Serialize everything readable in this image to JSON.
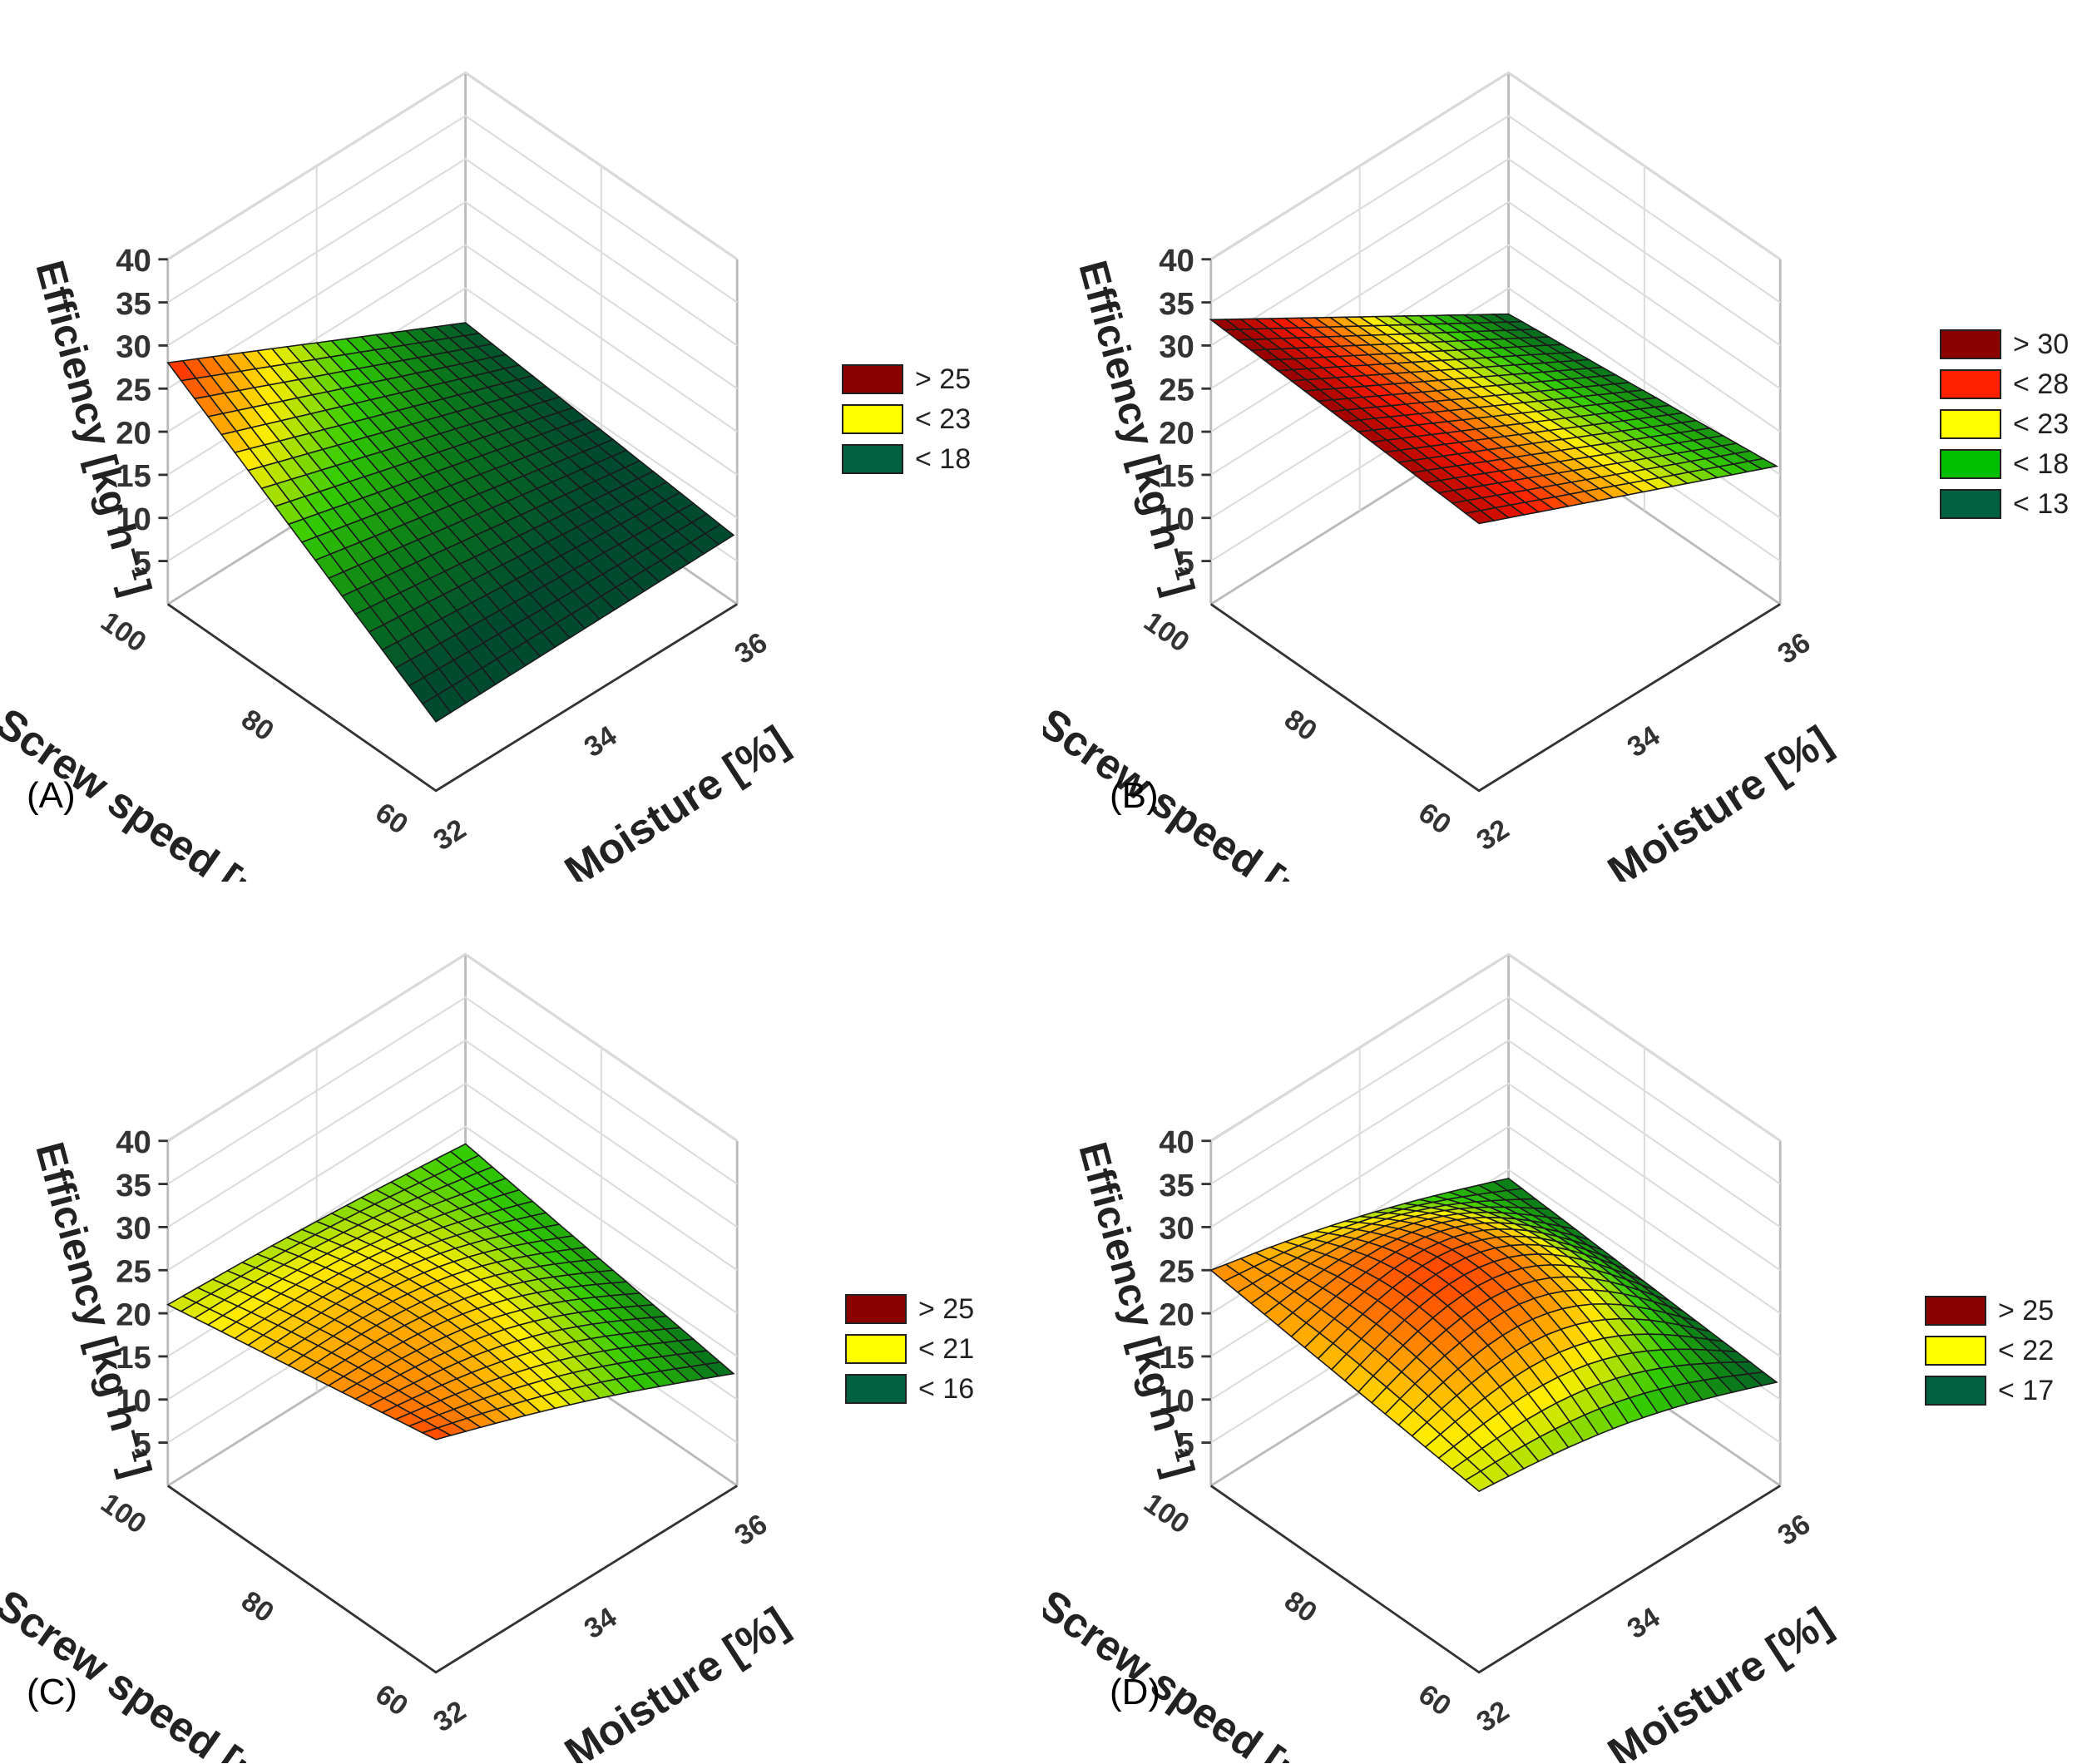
{
  "chart_data": [
    {
      "type": "surface3d",
      "panel_label": "(A)",
      "zlabel": "Efficiency [kg h⁻¹]",
      "xlabel": "Moisture [%]",
      "ylabel": "Screw speed [rpm]",
      "zlim": [
        0,
        40
      ],
      "z_ticks": [
        "5",
        "10",
        "15",
        "20",
        "25",
        "30",
        "35",
        "40"
      ],
      "x_ticks": [
        "32",
        "34",
        "36"
      ],
      "y_ticks": [
        "60",
        "80",
        "100"
      ],
      "corners": {
        "m32_s60": 8,
        "m36_s60": 8,
        "m32_s100": 28,
        "m36_s100": 11
      },
      "legend": [
        {
          "label": "> 25",
          "color": "#8b0000"
        },
        {
          "label": "< 23",
          "color": "#ffff00"
        },
        {
          "label": "< 18",
          "color": "#006040"
        }
      ]
    },
    {
      "type": "surface3d",
      "panel_label": "(B)",
      "zlabel": "Efficiency [kg h⁻¹]",
      "xlabel": "Moisture [%]",
      "ylabel": "Screw speed [rpm]",
      "zlim": [
        0,
        40
      ],
      "z_ticks": [
        "5",
        "10",
        "15",
        "20",
        "25",
        "30",
        "35",
        "40"
      ],
      "x_ticks": [
        "32",
        "34",
        "36"
      ],
      "y_ticks": [
        "60",
        "80",
        "100"
      ],
      "corners": {
        "m32_s60": 31,
        "m36_s60": 16,
        "m32_s100": 33,
        "m36_s100": 12
      },
      "legend": [
        {
          "label": "> 30",
          "color": "#8b0000"
        },
        {
          "label": "< 28",
          "color": "#ff2000"
        },
        {
          "label": "< 23",
          "color": "#ffff00"
        },
        {
          "label": "< 18",
          "color": "#00c000"
        },
        {
          "label": "< 13",
          "color": "#006040"
        }
      ]
    },
    {
      "type": "surface3d",
      "panel_label": "(C)",
      "zlabel": "Efficiency [kg h⁻¹]",
      "xlabel": "Moisture [%]",
      "ylabel": "Screw speed [rpm]",
      "zlim": [
        0,
        40
      ],
      "z_ticks": [
        "5",
        "10",
        "15",
        "20",
        "25",
        "30",
        "35",
        "40"
      ],
      "x_ticks": [
        "32",
        "34",
        "36"
      ],
      "y_ticks": [
        "60",
        "80",
        "100"
      ],
      "corners": {
        "m32_s60": 27,
        "m36_s60": 13,
        "m32_s100": 21,
        "m36_s100": 18
      },
      "legend": [
        {
          "label": "> 25",
          "color": "#8b0000"
        },
        {
          "label": "< 21",
          "color": "#ffff00"
        },
        {
          "label": "< 16",
          "color": "#006040"
        }
      ]
    },
    {
      "type": "surface3d",
      "panel_label": "(D)",
      "zlabel": "Efficiency [kg h⁻¹]",
      "xlabel": "Moisture [%]",
      "ylabel": "Screw speed [rpm]",
      "zlim": [
        0,
        40
      ],
      "z_ticks": [
        "5",
        "10",
        "15",
        "20",
        "25",
        "30",
        "35",
        "40"
      ],
      "x_ticks": [
        "32",
        "34",
        "36"
      ],
      "y_ticks": [
        "60",
        "80",
        "100"
      ],
      "corners": {
        "m32_s60": 21,
        "m36_s60": 12,
        "m32_s100": 25,
        "m36_s100": 14
      },
      "legend": [
        {
          "label": "> 25",
          "color": "#8b0000"
        },
        {
          "label": "< 22",
          "color": "#ffff00"
        },
        {
          "label": "< 17",
          "color": "#006040"
        }
      ]
    }
  ]
}
